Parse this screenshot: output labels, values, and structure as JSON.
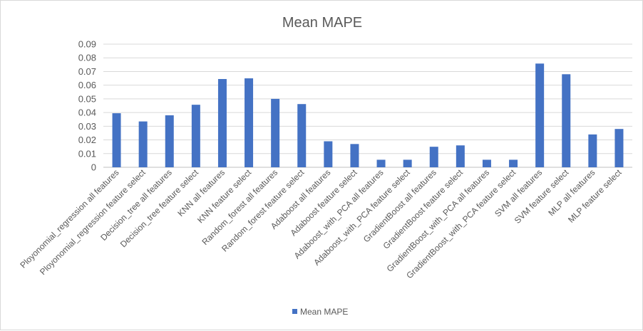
{
  "chart_data": {
    "type": "bar",
    "title": "Mean MAPE",
    "xlabel": "",
    "ylabel": "",
    "ylim": [
      0,
      0.09
    ],
    "yticks": [
      "0",
      "0.01",
      "0.02",
      "0.03",
      "0.04",
      "0.05",
      "0.06",
      "0.07",
      "0.08",
      "0.09"
    ],
    "grid": true,
    "legend_position": "bottom",
    "bar_color": "#4472c4",
    "categories": [
      "Ployonomial_regression all features",
      "Ployonomial_regression feature select",
      "Decision_tree all features",
      "Decision_tree feature select",
      "KNN all features",
      "KNN feature select",
      "Random_forest all features",
      "Random_forest feature select",
      "Adaboost all features",
      "Adaboost feature select",
      "Adaboost_with_PCA all features",
      "Adaboost_with_PCA feature select",
      "GradientBoost all features",
      "GradientBoost feature select",
      "GradientBoost_with_PCA all features",
      "GradientBoost_with_PCA feature select",
      "SVM all features",
      "SVM feature select",
      "MLP all features",
      "MLP feature select"
    ],
    "series": [
      {
        "name": "Mean MAPE",
        "values": [
          0.0395,
          0.0335,
          0.038,
          0.0457,
          0.0645,
          0.065,
          0.05,
          0.0462,
          0.019,
          0.017,
          0.0055,
          0.0055,
          0.015,
          0.016,
          0.0055,
          0.0055,
          0.0758,
          0.068,
          0.024,
          0.028
        ]
      }
    ]
  }
}
